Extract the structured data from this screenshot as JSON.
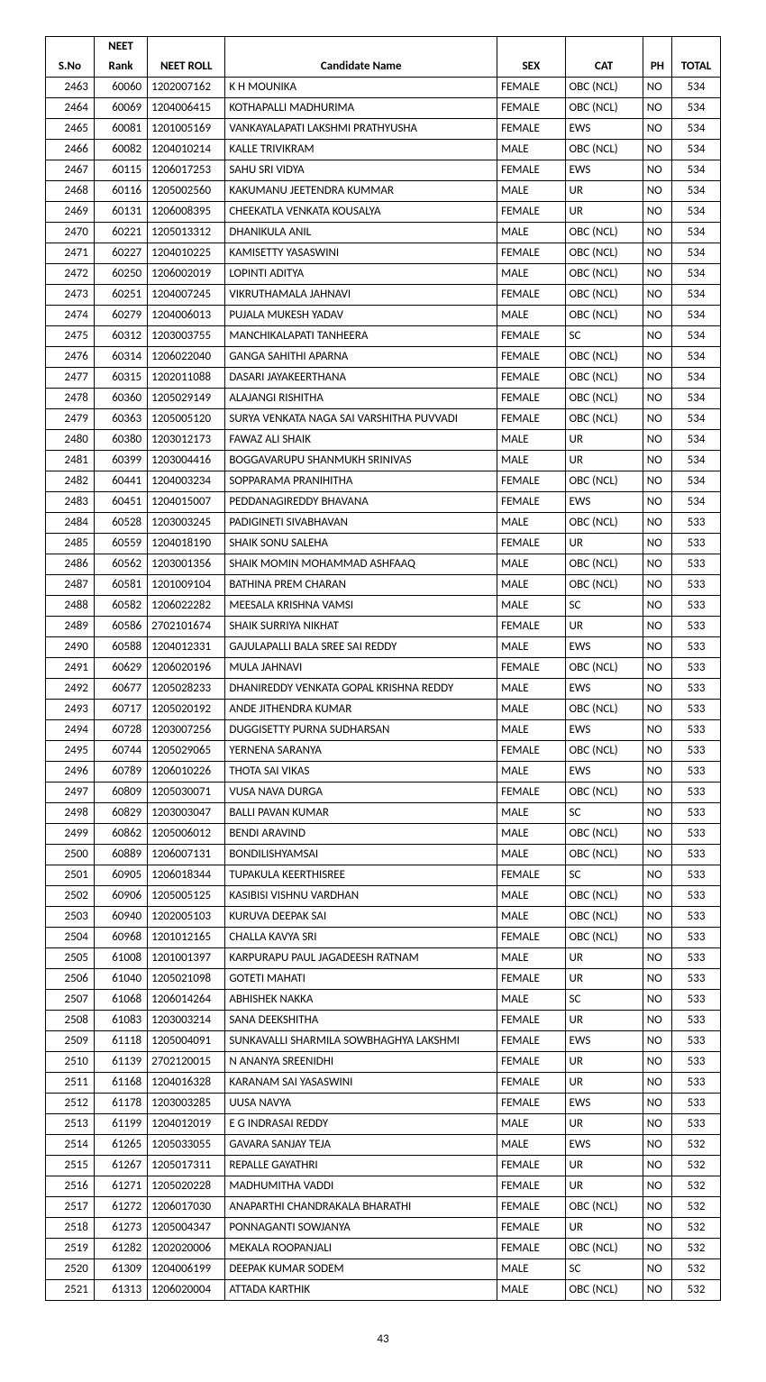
{
  "page_number": "43",
  "headers": {
    "sno": "S.No",
    "rank_top": "NEET",
    "rank_bottom": "Rank",
    "roll": "NEET ROLL",
    "name": "Candidate Name",
    "sex": "SEX",
    "cat": "CAT",
    "ph": "PH",
    "total": "TOTAL"
  },
  "rows": [
    {
      "sno": "2463",
      "rank": "60060",
      "roll": "1202007162",
      "name": "K H MOUNIKA",
      "sex": "FEMALE",
      "cat": "OBC (NCL)",
      "ph": "NO",
      "total": "534"
    },
    {
      "sno": "2464",
      "rank": "60069",
      "roll": "1204006415",
      "name": "KOTHAPALLI MADHURIMA",
      "sex": "FEMALE",
      "cat": "OBC (NCL)",
      "ph": "NO",
      "total": "534"
    },
    {
      "sno": "2465",
      "rank": "60081",
      "roll": "1201005169",
      "name": "VANKAYALAPATI LAKSHMI PRATHYUSHA",
      "sex": "FEMALE",
      "cat": "EWS",
      "ph": "NO",
      "total": "534"
    },
    {
      "sno": "2466",
      "rank": "60082",
      "roll": "1204010214",
      "name": "KALLE TRIVIKRAM",
      "sex": "MALE",
      "cat": "OBC (NCL)",
      "ph": "NO",
      "total": "534"
    },
    {
      "sno": "2467",
      "rank": "60115",
      "roll": "1206017253",
      "name": "SAHU SRI VIDYA",
      "sex": "FEMALE",
      "cat": "EWS",
      "ph": "NO",
      "total": "534"
    },
    {
      "sno": "2468",
      "rank": "60116",
      "roll": "1205002560",
      "name": "KAKUMANU JEETENDRA KUMMAR",
      "sex": "MALE",
      "cat": "UR",
      "ph": "NO",
      "total": "534"
    },
    {
      "sno": "2469",
      "rank": "60131",
      "roll": "1206008395",
      "name": "CHEEKATLA VENKATA KOUSALYA",
      "sex": "FEMALE",
      "cat": "UR",
      "ph": "NO",
      "total": "534"
    },
    {
      "sno": "2470",
      "rank": "60221",
      "roll": "1205013312",
      "name": "DHANIKULA ANIL",
      "sex": "MALE",
      "cat": "OBC (NCL)",
      "ph": "NO",
      "total": "534"
    },
    {
      "sno": "2471",
      "rank": "60227",
      "roll": "1204010225",
      "name": "KAMISETTY YASASWINI",
      "sex": "FEMALE",
      "cat": "OBC (NCL)",
      "ph": "NO",
      "total": "534"
    },
    {
      "sno": "2472",
      "rank": "60250",
      "roll": "1206002019",
      "name": "LOPINTI ADITYA",
      "sex": "MALE",
      "cat": "OBC (NCL)",
      "ph": "NO",
      "total": "534"
    },
    {
      "sno": "2473",
      "rank": "60251",
      "roll": "1204007245",
      "name": "VIKRUTHAMALA JAHNAVI",
      "sex": "FEMALE",
      "cat": "OBC (NCL)",
      "ph": "NO",
      "total": "534"
    },
    {
      "sno": "2474",
      "rank": "60279",
      "roll": "1204006013",
      "name": "PUJALA MUKESH YADAV",
      "sex": "MALE",
      "cat": "OBC (NCL)",
      "ph": "NO",
      "total": "534"
    },
    {
      "sno": "2475",
      "rank": "60312",
      "roll": "1203003755",
      "name": "MANCHIKALAPATI TANHEERA",
      "sex": "FEMALE",
      "cat": "SC",
      "ph": "NO",
      "total": "534"
    },
    {
      "sno": "2476",
      "rank": "60314",
      "roll": "1206022040",
      "name": "GANGA SAHITHI APARNA",
      "sex": "FEMALE",
      "cat": "OBC (NCL)",
      "ph": "NO",
      "total": "534"
    },
    {
      "sno": "2477",
      "rank": "60315",
      "roll": "1202011088",
      "name": "DASARI JAYAKEERTHANA",
      "sex": "FEMALE",
      "cat": "OBC (NCL)",
      "ph": "NO",
      "total": "534"
    },
    {
      "sno": "2478",
      "rank": "60360",
      "roll": "1205029149",
      "name": "ALAJANGI RISHITHA",
      "sex": "FEMALE",
      "cat": "OBC (NCL)",
      "ph": "NO",
      "total": "534"
    },
    {
      "sno": "2479",
      "rank": "60363",
      "roll": "1205005120",
      "name": "SURYA VENKATA NAGA SAI VARSHITHA PUVVADI",
      "sex": "FEMALE",
      "cat": "OBC (NCL)",
      "ph": "NO",
      "total": "534"
    },
    {
      "sno": "2480",
      "rank": "60380",
      "roll": "1203012173",
      "name": "FAWAZ ALI SHAIK",
      "sex": "MALE",
      "cat": "UR",
      "ph": "NO",
      "total": "534"
    },
    {
      "sno": "2481",
      "rank": "60399",
      "roll": "1203004416",
      "name": "BOGGAVARUPU SHANMUKH SRINIVAS",
      "sex": "MALE",
      "cat": "UR",
      "ph": "NO",
      "total": "534"
    },
    {
      "sno": "2482",
      "rank": "60441",
      "roll": "1204003234",
      "name": "SOPPARAMA PRANIHITHA",
      "sex": "FEMALE",
      "cat": "OBC (NCL)",
      "ph": "NO",
      "total": "534"
    },
    {
      "sno": "2483",
      "rank": "60451",
      "roll": "1204015007",
      "name": "PEDDANAGIREDDY BHAVANA",
      "sex": "FEMALE",
      "cat": "EWS",
      "ph": "NO",
      "total": "534"
    },
    {
      "sno": "2484",
      "rank": "60528",
      "roll": "1203003245",
      "name": "PADIGINETI SIVABHAVAN",
      "sex": "MALE",
      "cat": "OBC (NCL)",
      "ph": "NO",
      "total": "533"
    },
    {
      "sno": "2485",
      "rank": "60559",
      "roll": "1204018190",
      "name": "SHAIK SONU SALEHA",
      "sex": "FEMALE",
      "cat": "UR",
      "ph": "NO",
      "total": "533"
    },
    {
      "sno": "2486",
      "rank": "60562",
      "roll": "1203001356",
      "name": "SHAIK MOMIN MOHAMMAD ASHFAAQ",
      "sex": "MALE",
      "cat": "OBC (NCL)",
      "ph": "NO",
      "total": "533"
    },
    {
      "sno": "2487",
      "rank": "60581",
      "roll": "1201009104",
      "name": "BATHINA PREM CHARAN",
      "sex": "MALE",
      "cat": "OBC (NCL)",
      "ph": "NO",
      "total": "533"
    },
    {
      "sno": "2488",
      "rank": "60582",
      "roll": "1206022282",
      "name": "MEESALA KRISHNA VAMSI",
      "sex": "MALE",
      "cat": "SC",
      "ph": "NO",
      "total": "533"
    },
    {
      "sno": "2489",
      "rank": "60586",
      "roll": "2702101674",
      "name": "SHAIK SURRIYA NIKHAT",
      "sex": "FEMALE",
      "cat": "UR",
      "ph": "NO",
      "total": "533"
    },
    {
      "sno": "2490",
      "rank": "60588",
      "roll": "1204012331",
      "name": "GAJULAPALLI BALA SREE SAI REDDY",
      "sex": "MALE",
      "cat": "EWS",
      "ph": "NO",
      "total": "533"
    },
    {
      "sno": "2491",
      "rank": "60629",
      "roll": "1206020196",
      "name": "MULA JAHNAVI",
      "sex": "FEMALE",
      "cat": "OBC (NCL)",
      "ph": "NO",
      "total": "533"
    },
    {
      "sno": "2492",
      "rank": "60677",
      "roll": "1205028233",
      "name": "DHANIREDDY VENKATA GOPAL KRISHNA REDDY",
      "sex": "MALE",
      "cat": "EWS",
      "ph": "NO",
      "total": "533"
    },
    {
      "sno": "2493",
      "rank": "60717",
      "roll": "1205020192",
      "name": "ANDE JITHENDRA KUMAR",
      "sex": "MALE",
      "cat": "OBC (NCL)",
      "ph": "NO",
      "total": "533"
    },
    {
      "sno": "2494",
      "rank": "60728",
      "roll": "1203007256",
      "name": "DUGGISETTY PURNA SUDHARSAN",
      "sex": "MALE",
      "cat": "EWS",
      "ph": "NO",
      "total": "533"
    },
    {
      "sno": "2495",
      "rank": "60744",
      "roll": "1205029065",
      "name": "YERNENA SARANYA",
      "sex": "FEMALE",
      "cat": "OBC (NCL)",
      "ph": "NO",
      "total": "533"
    },
    {
      "sno": "2496",
      "rank": "60789",
      "roll": "1206010226",
      "name": "THOTA SAI VIKAS",
      "sex": "MALE",
      "cat": "EWS",
      "ph": "NO",
      "total": "533"
    },
    {
      "sno": "2497",
      "rank": "60809",
      "roll": "1205030071",
      "name": "VUSA NAVA DURGA",
      "sex": "FEMALE",
      "cat": "OBC (NCL)",
      "ph": "NO",
      "total": "533"
    },
    {
      "sno": "2498",
      "rank": "60829",
      "roll": "1203003047",
      "name": "BALLI PAVAN KUMAR",
      "sex": "MALE",
      "cat": "SC",
      "ph": "NO",
      "total": "533"
    },
    {
      "sno": "2499",
      "rank": "60862",
      "roll": "1205006012",
      "name": "BENDI ARAVIND",
      "sex": "MALE",
      "cat": "OBC (NCL)",
      "ph": "NO",
      "total": "533"
    },
    {
      "sno": "2500",
      "rank": "60889",
      "roll": "1206007131",
      "name": "BONDILISHYAMSAI",
      "sex": "MALE",
      "cat": "OBC (NCL)",
      "ph": "NO",
      "total": "533"
    },
    {
      "sno": "2501",
      "rank": "60905",
      "roll": "1206018344",
      "name": "TUPAKULA KEERTHISREE",
      "sex": "FEMALE",
      "cat": "SC",
      "ph": "NO",
      "total": "533"
    },
    {
      "sno": "2502",
      "rank": "60906",
      "roll": "1205005125",
      "name": "KASIBISI VISHNU VARDHAN",
      "sex": "MALE",
      "cat": "OBC (NCL)",
      "ph": "NO",
      "total": "533"
    },
    {
      "sno": "2503",
      "rank": "60940",
      "roll": "1202005103",
      "name": "KURUVA DEEPAK SAI",
      "sex": "MALE",
      "cat": "OBC (NCL)",
      "ph": "NO",
      "total": "533"
    },
    {
      "sno": "2504",
      "rank": "60968",
      "roll": "1201012165",
      "name": "CHALLA KAVYA SRI",
      "sex": "FEMALE",
      "cat": "OBC (NCL)",
      "ph": "NO",
      "total": "533"
    },
    {
      "sno": "2505",
      "rank": "61008",
      "roll": "1201001397",
      "name": "KARPURAPU PAUL JAGADEESH RATNAM",
      "sex": "MALE",
      "cat": "UR",
      "ph": "NO",
      "total": "533"
    },
    {
      "sno": "2506",
      "rank": "61040",
      "roll": "1205021098",
      "name": "GOTETI MAHATI",
      "sex": "FEMALE",
      "cat": "UR",
      "ph": "NO",
      "total": "533"
    },
    {
      "sno": "2507",
      "rank": "61068",
      "roll": "1206014264",
      "name": "ABHISHEK NAKKA",
      "sex": "MALE",
      "cat": "SC",
      "ph": "NO",
      "total": "533"
    },
    {
      "sno": "2508",
      "rank": "61083",
      "roll": "1203003214",
      "name": "SANA DEEKSHITHA",
      "sex": "FEMALE",
      "cat": "UR",
      "ph": "NO",
      "total": "533"
    },
    {
      "sno": "2509",
      "rank": "61118",
      "roll": "1205004091",
      "name": "SUNKAVALLI SHARMILA SOWBHAGHYA LAKSHMI",
      "sex": "FEMALE",
      "cat": "EWS",
      "ph": "NO",
      "total": "533"
    },
    {
      "sno": "2510",
      "rank": "61139",
      "roll": "2702120015",
      "name": "N ANANYA SREENIDHI",
      "sex": "FEMALE",
      "cat": "UR",
      "ph": "NO",
      "total": "533"
    },
    {
      "sno": "2511",
      "rank": "61168",
      "roll": "1204016328",
      "name": "KARANAM SAI YASASWINI",
      "sex": "FEMALE",
      "cat": "UR",
      "ph": "NO",
      "total": "533"
    },
    {
      "sno": "2512",
      "rank": "61178",
      "roll": "1203003285",
      "name": "UUSA NAVYA",
      "sex": "FEMALE",
      "cat": "EWS",
      "ph": "NO",
      "total": "533"
    },
    {
      "sno": "2513",
      "rank": "61199",
      "roll": "1204012019",
      "name": "E G INDRASAI REDDY",
      "sex": "MALE",
      "cat": "UR",
      "ph": "NO",
      "total": "533"
    },
    {
      "sno": "2514",
      "rank": "61265",
      "roll": "1205033055",
      "name": "GAVARA SANJAY TEJA",
      "sex": "MALE",
      "cat": "EWS",
      "ph": "NO",
      "total": "532"
    },
    {
      "sno": "2515",
      "rank": "61267",
      "roll": "1205017311",
      "name": "REPALLE GAYATHRI",
      "sex": "FEMALE",
      "cat": "UR",
      "ph": "NO",
      "total": "532"
    },
    {
      "sno": "2516",
      "rank": "61271",
      "roll": "1205020228",
      "name": "MADHUMITHA VADDI",
      "sex": "FEMALE",
      "cat": "UR",
      "ph": "NO",
      "total": "532"
    },
    {
      "sno": "2517",
      "rank": "61272",
      "roll": "1206017030",
      "name": "ANAPARTHI CHANDRAKALA BHARATHI",
      "sex": "FEMALE",
      "cat": "OBC (NCL)",
      "ph": "NO",
      "total": "532"
    },
    {
      "sno": "2518",
      "rank": "61273",
      "roll": "1205004347",
      "name": "PONNAGANTI SOWJANYA",
      "sex": "FEMALE",
      "cat": "UR",
      "ph": "NO",
      "total": "532"
    },
    {
      "sno": "2519",
      "rank": "61282",
      "roll": "1202020006",
      "name": "MEKALA ROOPANJALI",
      "sex": "FEMALE",
      "cat": "OBC (NCL)",
      "ph": "NO",
      "total": "532"
    },
    {
      "sno": "2520",
      "rank": "61309",
      "roll": "1204006199",
      "name": "DEEPAK KUMAR SODEM",
      "sex": "MALE",
      "cat": "SC",
      "ph": "NO",
      "total": "532"
    },
    {
      "sno": "2521",
      "rank": "61313",
      "roll": "1206020004",
      "name": "ATTADA KARTHIK",
      "sex": "MALE",
      "cat": "OBC (NCL)",
      "ph": "NO",
      "total": "532"
    }
  ]
}
